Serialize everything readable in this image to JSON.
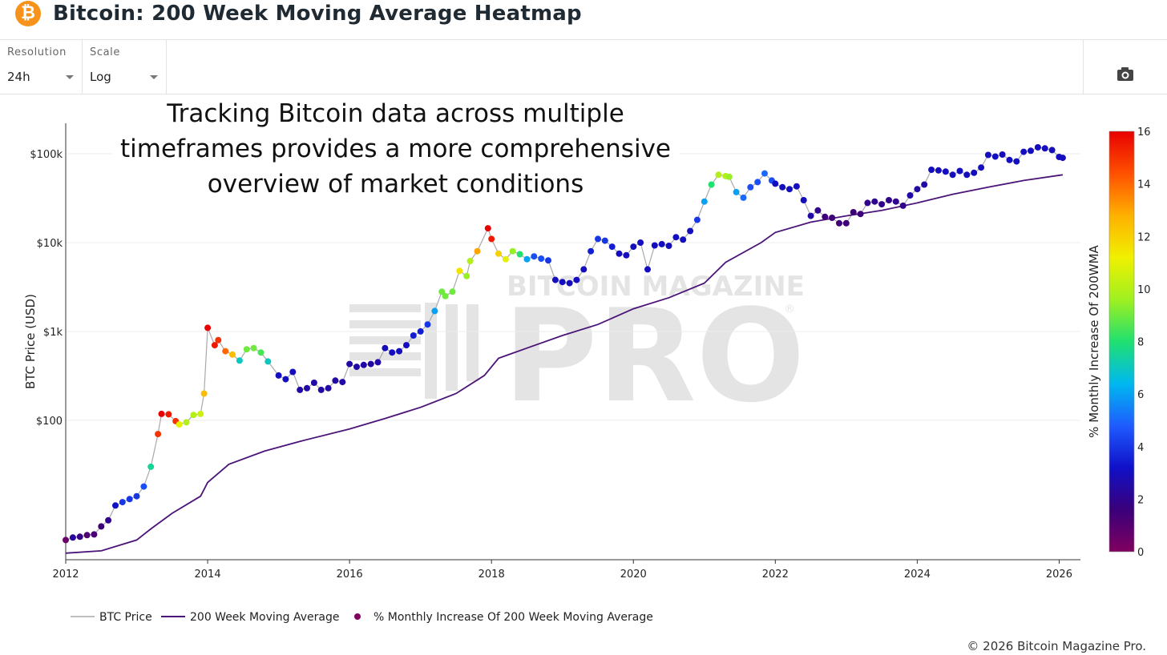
{
  "header": {
    "logo_glyph": "₿",
    "title": "Bitcoin: 200 Week Moving Average Heatmap"
  },
  "toolbar": {
    "resolution_label": "Resolution",
    "resolution_value": "24h",
    "scale_label": "Scale",
    "scale_value": "Log",
    "camera_icon": "camera-icon"
  },
  "overlay": {
    "lines": [
      "Tracking Bitcoin data across multiple",
      "timeframes provides a more comprehensive",
      "overview of market conditions"
    ]
  },
  "watermark": {
    "line1": "BITCOIN MAGAZINE",
    "line2": "PRO",
    "reg": "®"
  },
  "footer": "© 2026 Bitcoin Magazine Pro.",
  "colors": {
    "price": "#a9a9a9",
    "ma": "#4b1478",
    "scale": [
      "#800060",
      "#3a007a",
      "#1010c8",
      "#1e5cff",
      "#00b8f0",
      "#20e070",
      "#a0f020",
      "#f0f000",
      "#ffb000",
      "#ff5000",
      "#e80000"
    ]
  },
  "chart_data": {
    "type": "scatter",
    "title": "Bitcoin: 200 Week Moving Average Heatmap",
    "xlabel": "",
    "ylabel": "BTC Price (USD)",
    "y_scale": "log",
    "xlim": [
      2012,
      2026.3
    ],
    "ylim": [
      2.7,
      220000
    ],
    "x_ticks": [
      "2012",
      "2014",
      "2016",
      "2018",
      "2020",
      "2022",
      "2024",
      "2026"
    ],
    "y_ticks": [
      {
        "value": 100,
        "label": "$100"
      },
      {
        "value": 1000,
        "label": "$1k"
      },
      {
        "value": 10000,
        "label": "$10k"
      },
      {
        "value": 100000,
        "label": "$100k"
      }
    ],
    "colorbar": {
      "label": "% Monthly Increase Of 200WMA",
      "min": 0,
      "max": 16,
      "ticks": [
        "0",
        "2",
        "4",
        "6",
        "8",
        "10",
        "12",
        "14",
        "16"
      ]
    },
    "legend": {
      "placement": "bottom",
      "items": [
        "BTC Price",
        "200 Week Moving Average",
        "% Monthly Increase Of 200 Week Moving Average"
      ]
    },
    "ma_series": {
      "name": "200 Week Moving Average",
      "points": [
        [
          2012.0,
          3.2
        ],
        [
          2012.5,
          3.4
        ],
        [
          2013.0,
          4.5
        ],
        [
          2013.2,
          6.0
        ],
        [
          2013.5,
          9.0
        ],
        [
          2013.9,
          14
        ],
        [
          2014.0,
          20
        ],
        [
          2014.3,
          32
        ],
        [
          2014.8,
          45
        ],
        [
          2015.3,
          58
        ],
        [
          2016.0,
          80
        ],
        [
          2016.5,
          105
        ],
        [
          2017.0,
          140
        ],
        [
          2017.5,
          200
        ],
        [
          2017.9,
          320
        ],
        [
          2018.1,
          500
        ],
        [
          2018.5,
          650
        ],
        [
          2019.0,
          900
        ],
        [
          2019.5,
          1200
        ],
        [
          2020.0,
          1800
        ],
        [
          2020.5,
          2400
        ],
        [
          2021.0,
          3500
        ],
        [
          2021.3,
          6000
        ],
        [
          2021.8,
          10000
        ],
        [
          2022.0,
          13000
        ],
        [
          2022.5,
          17000
        ],
        [
          2023.0,
          20000
        ],
        [
          2023.5,
          23000
        ],
        [
          2024.0,
          28000
        ],
        [
          2024.5,
          35000
        ],
        [
          2025.0,
          42000
        ],
        [
          2025.5,
          50000
        ],
        [
          2026.05,
          58000
        ]
      ]
    },
    "price_points": [
      [
        2012.0,
        4.5,
        0.5
      ],
      [
        2012.1,
        4.8,
        2.3
      ],
      [
        2012.2,
        4.9,
        1.8
      ],
      [
        2012.3,
        5.1,
        1.2
      ],
      [
        2012.4,
        5.2,
        1.3
      ],
      [
        2012.5,
        6.4,
        1.5
      ],
      [
        2012.6,
        7.5,
        2.0
      ],
      [
        2012.7,
        11,
        3.2
      ],
      [
        2012.8,
        12,
        4.0
      ],
      [
        2012.9,
        13,
        4.0
      ],
      [
        2013.0,
        14,
        4.0
      ],
      [
        2013.1,
        18,
        4.5
      ],
      [
        2013.2,
        30,
        7.5
      ],
      [
        2013.3,
        70,
        15
      ],
      [
        2013.35,
        118,
        16
      ],
      [
        2013.45,
        117,
        15.5
      ],
      [
        2013.55,
        98,
        15
      ],
      [
        2013.6,
        90,
        11
      ],
      [
        2013.7,
        95,
        10
      ],
      [
        2013.8,
        115,
        10
      ],
      [
        2013.9,
        118,
        10.5
      ],
      [
        2013.95,
        200,
        12.5
      ],
      [
        2014.0,
        1100,
        16
      ],
      [
        2014.1,
        700,
        15.5
      ],
      [
        2014.15,
        800,
        15
      ],
      [
        2014.25,
        600,
        14
      ],
      [
        2014.35,
        550,
        12.5
      ],
      [
        2014.45,
        470,
        7
      ],
      [
        2014.55,
        630,
        9
      ],
      [
        2014.65,
        650,
        9
      ],
      [
        2014.75,
        580,
        8.5
      ],
      [
        2014.85,
        460,
        7
      ],
      [
        2015.0,
        320,
        3
      ],
      [
        2015.1,
        290,
        3
      ],
      [
        2015.2,
        350,
        3
      ],
      [
        2015.3,
        220,
        2.5
      ],
      [
        2015.4,
        230,
        2.5
      ],
      [
        2015.5,
        265,
        2.5
      ],
      [
        2015.6,
        220,
        2.5
      ],
      [
        2015.7,
        230,
        2.5
      ],
      [
        2015.8,
        280,
        2.5
      ],
      [
        2015.9,
        270,
        2.5
      ],
      [
        2016.0,
        430,
        2.5
      ],
      [
        2016.1,
        400,
        2.5
      ],
      [
        2016.2,
        420,
        2.5
      ],
      [
        2016.3,
        430,
        2.5
      ],
      [
        2016.4,
        450,
        2.5
      ],
      [
        2016.5,
        650,
        3
      ],
      [
        2016.6,
        580,
        3
      ],
      [
        2016.7,
        600,
        3
      ],
      [
        2016.8,
        700,
        3
      ],
      [
        2016.9,
        900,
        3.5
      ],
      [
        2017.0,
        1000,
        3.5
      ],
      [
        2017.1,
        1200,
        4
      ],
      [
        2017.2,
        1700,
        6
      ],
      [
        2017.3,
        2800,
        9
      ],
      [
        2017.35,
        2500,
        9
      ],
      [
        2017.45,
        2800,
        9
      ],
      [
        2017.55,
        4800,
        11.5
      ],
      [
        2017.65,
        4200,
        9.5
      ],
      [
        2017.7,
        6200,
        10
      ],
      [
        2017.8,
        8000,
        13
      ],
      [
        2017.95,
        14500,
        16
      ],
      [
        2018.0,
        11000,
        15.5
      ],
      [
        2018.1,
        7500,
        12
      ],
      [
        2018.2,
        6500,
        11
      ],
      [
        2018.3,
        8000,
        9.5
      ],
      [
        2018.4,
        7400,
        8
      ],
      [
        2018.5,
        6500,
        6
      ],
      [
        2018.6,
        7000,
        4.5
      ],
      [
        2018.7,
        6600,
        4.5
      ],
      [
        2018.8,
        6300,
        4
      ],
      [
        2018.9,
        3800,
        3
      ],
      [
        2019.0,
        3600,
        3
      ],
      [
        2019.1,
        3500,
        3
      ],
      [
        2019.2,
        3800,
        3
      ],
      [
        2019.3,
        5000,
        3
      ],
      [
        2019.4,
        8000,
        3.5
      ],
      [
        2019.5,
        11000,
        4
      ],
      [
        2019.6,
        10500,
        4
      ],
      [
        2019.7,
        9000,
        3.5
      ],
      [
        2019.8,
        7500,
        3
      ],
      [
        2019.9,
        7200,
        3
      ],
      [
        2020.0,
        9000,
        3
      ],
      [
        2020.1,
        10000,
        3
      ],
      [
        2020.2,
        5000,
        3
      ],
      [
        2020.3,
        9300,
        3
      ],
      [
        2020.4,
        9600,
        3
      ],
      [
        2020.5,
        9200,
        3
      ],
      [
        2020.6,
        11500,
        3
      ],
      [
        2020.7,
        10800,
        3
      ],
      [
        2020.8,
        13500,
        3
      ],
      [
        2020.9,
        18000,
        4
      ],
      [
        2021.0,
        29000,
        6
      ],
      [
        2021.1,
        45000,
        8
      ],
      [
        2021.2,
        58000,
        10
      ],
      [
        2021.3,
        56000,
        10
      ],
      [
        2021.35,
        55000,
        9.5
      ],
      [
        2021.45,
        37000,
        6
      ],
      [
        2021.55,
        32000,
        5
      ],
      [
        2021.65,
        42000,
        4.5
      ],
      [
        2021.75,
        48000,
        4.5
      ],
      [
        2021.85,
        60000,
        5
      ],
      [
        2021.95,
        50000,
        4.5
      ],
      [
        2022.0,
        46000,
        3
      ],
      [
        2022.1,
        42000,
        3
      ],
      [
        2022.2,
        40000,
        3
      ],
      [
        2022.3,
        43000,
        3
      ],
      [
        2022.4,
        30000,
        3
      ],
      [
        2022.5,
        20000,
        2.5
      ],
      [
        2022.6,
        23000,
        2
      ],
      [
        2022.7,
        19500,
        1.5
      ],
      [
        2022.8,
        19000,
        1.5
      ],
      [
        2022.9,
        16500,
        1.5
      ],
      [
        2023.0,
        16500,
        1.5
      ],
      [
        2023.1,
        22000,
        1.5
      ],
      [
        2023.2,
        21000,
        1.5
      ],
      [
        2023.3,
        28000,
        2
      ],
      [
        2023.4,
        29000,
        2
      ],
      [
        2023.5,
        27000,
        2
      ],
      [
        2023.6,
        30000,
        2
      ],
      [
        2023.7,
        29000,
        2
      ],
      [
        2023.8,
        26000,
        2
      ],
      [
        2023.9,
        34000,
        2.5
      ],
      [
        2024.0,
        40000,
        2.5
      ],
      [
        2024.1,
        45000,
        2.5
      ],
      [
        2024.2,
        66000,
        3
      ],
      [
        2024.3,
        65000,
        3
      ],
      [
        2024.4,
        63000,
        3
      ],
      [
        2024.5,
        58000,
        3
      ],
      [
        2024.6,
        64000,
        3
      ],
      [
        2024.7,
        58000,
        3
      ],
      [
        2024.8,
        61000,
        3
      ],
      [
        2024.9,
        70000,
        3
      ],
      [
        2025.0,
        97000,
        3
      ],
      [
        2025.1,
        93000,
        3
      ],
      [
        2025.2,
        98000,
        3
      ],
      [
        2025.3,
        85000,
        3
      ],
      [
        2025.4,
        82000,
        3
      ],
      [
        2025.5,
        105000,
        3
      ],
      [
        2025.6,
        108000,
        3
      ],
      [
        2025.7,
        118000,
        3
      ],
      [
        2025.8,
        115000,
        3
      ],
      [
        2025.9,
        110000,
        3
      ],
      [
        2026.0,
        92000,
        3
      ],
      [
        2026.05,
        90000,
        3
      ]
    ]
  }
}
